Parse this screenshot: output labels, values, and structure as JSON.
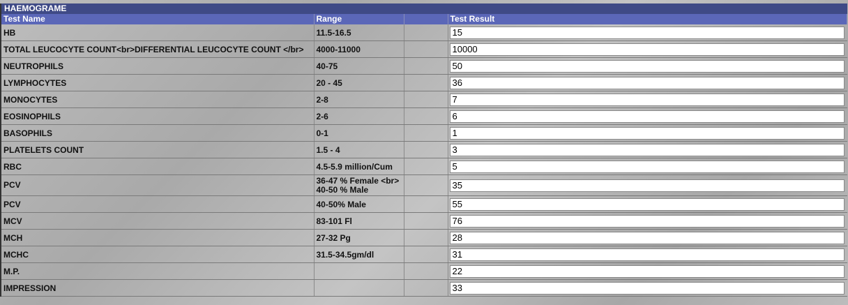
{
  "title": "HAEMOGRAME",
  "headers": {
    "name": "Test Name",
    "range": "Range",
    "blank": "",
    "result": "Test Result"
  },
  "rows": [
    {
      "name": "HB",
      "range": "11.5-16.5",
      "result": "15"
    },
    {
      "name": "TOTAL LEUCOCYTE COUNT<br>DIFFERENTIAL LEUCOCYTE COUNT </br>",
      "range": "4000-11000",
      "result": "10000"
    },
    {
      "name": "NEUTROPHILS",
      "range": "40-75",
      "result": "50"
    },
    {
      "name": "LYMPHOCYTES",
      "range": "20 - 45",
      "result": "36"
    },
    {
      "name": "MONOCYTES",
      "range": "2-8",
      "result": "7"
    },
    {
      "name": "EOSINOPHILS",
      "range": "2-6",
      "result": "6"
    },
    {
      "name": "BASOPHILS",
      "range": "0-1",
      "result": "1"
    },
    {
      "name": "PLATELETS COUNT",
      "range": "1.5 - 4",
      "result": "3"
    },
    {
      "name": "RBC",
      "range": "4.5-5.9 million/Cum",
      "result": "5"
    },
    {
      "name": "PCV",
      "range": "36-47 % Female <br> 40-50 % Male",
      "result": "35"
    },
    {
      "name": "PCV",
      "range": "40-50% Male",
      "result": "55"
    },
    {
      "name": "MCV",
      "range": "83-101 Fl",
      "result": "76"
    },
    {
      "name": "MCH",
      "range": "27-32 Pg",
      "result": "28"
    },
    {
      "name": "MCHC",
      "range": "31.5-34.5gm/dl",
      "result": "31"
    },
    {
      "name": "M.P.",
      "range": "",
      "result": "22"
    },
    {
      "name": "IMPRESSION",
      "range": "",
      "result": "33"
    }
  ]
}
